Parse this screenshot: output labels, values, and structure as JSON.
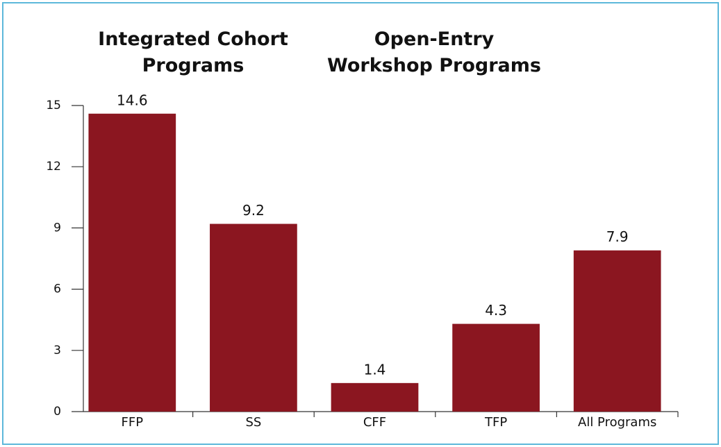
{
  "chart_data": {
    "type": "bar",
    "group_labels": [
      "Integrated Cohort Programs",
      "Open-Entry Workshop Programs"
    ],
    "categories": [
      "FFP",
      "SS",
      "CFF",
      "TFP",
      "All Programs"
    ],
    "values": [
      14.6,
      9.2,
      1.4,
      4.3,
      7.9
    ],
    "color": "#8b1620",
    "ylim": [
      0,
      15
    ],
    "yticks": [
      0,
      3,
      6,
      9,
      12,
      15
    ],
    "grid": false
  }
}
